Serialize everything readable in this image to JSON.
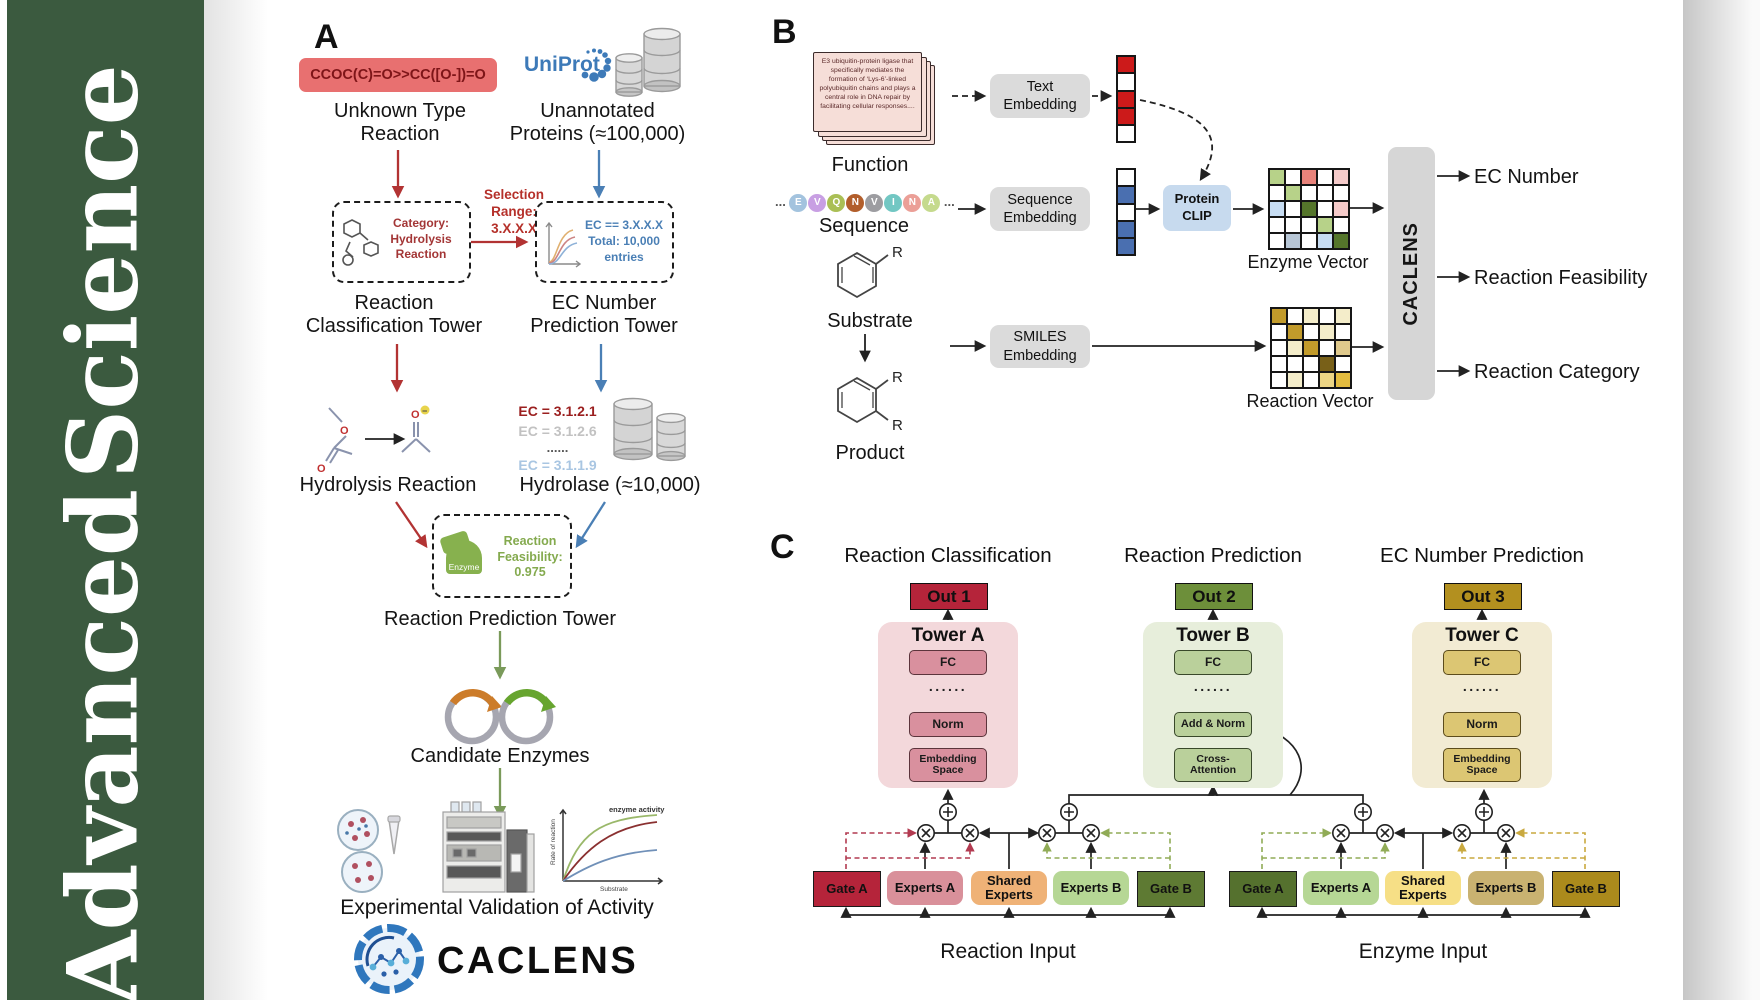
{
  "journal": {
    "line1": "Advanced",
    "line2": "Science"
  },
  "colors": {
    "sidebar_green": "#3b5a3f",
    "accent_red": "#b5243a",
    "accent_green": "#6d8f3a",
    "accent_gold": "#b3901f",
    "uniprot_blue": "#3d7ab8",
    "arrow_red": "#b23333",
    "arrow_blue": "#4a7fb5",
    "arrow_green": "#7a9a5a"
  },
  "panel_a": {
    "label": "A",
    "smiles": "CCOC(C)=O>>CC([O-])=O",
    "unknown": [
      "Unknown Type",
      "Reaction"
    ],
    "uniprot": "UniProt",
    "unannotated": [
      "Unannotated",
      "Proteins (≈100,000)"
    ],
    "rc_box_category": "Category: Hydrolysis Reaction",
    "selection": [
      "Selection",
      "Range:",
      "3.X.X.X"
    ],
    "ec_box": [
      "EC == 3.X.X.X",
      "Total: 10,000",
      "entries"
    ],
    "rc_tower": [
      "Reaction",
      "Classification Tower"
    ],
    "ec_tower": [
      "EC Number",
      "Prediction Tower"
    ],
    "hydrolysis": "Hydrolysis Reaction",
    "ec_list": [
      "EC = 3.1.2.1",
      "EC = 3.1.2.6",
      "......",
      "EC = 3.1.1.9"
    ],
    "hydrolase": "Hydrolase (≈10,000)",
    "enzyme_blob": "Enzyme",
    "feasibility": "Reaction Feasibility: 0.975",
    "rp_tower": "Reaction Prediction Tower",
    "candidate": "Candidate Enzymes",
    "validation": "Experimental Validation of Activity",
    "activity_plot": {
      "title": "enzyme activity",
      "ylabel": "Rate of reaction",
      "xlabel": "Substrate"
    },
    "logo_word": "CACLENS"
  },
  "panel_b": {
    "label": "B",
    "function_card": "E3 ubiquitin-protein ligase that specifically mediates the formation of ‘Lys-6’-linked polyubiquitin chains and plays a central role in DNA repair by facilitating cellular responses....",
    "function_label": "Function",
    "ellipsis": "...",
    "residues": [
      {
        "letter": "E",
        "color": "#a3c3de"
      },
      {
        "letter": "V",
        "color": "#c89fe3"
      },
      {
        "letter": "Q",
        "color": "#aabf55"
      },
      {
        "letter": "N",
        "color": "#b25e2b"
      },
      {
        "letter": "V",
        "color": "#9d9da1"
      },
      {
        "letter": "I",
        "color": "#72c7c3"
      },
      {
        "letter": "N",
        "color": "#eb9f97"
      },
      {
        "letter": "A",
        "color": "#c5da8d"
      }
    ],
    "sequence_label": "Sequence",
    "substrate_label": "Substrate",
    "product_label": "Product",
    "r_group": "R",
    "embeddings": {
      "text": "Text Embedding",
      "sequence": "Sequence Embedding",
      "smiles": "SMILES Embedding"
    },
    "protein_clip": "Protein CLIP",
    "enzyme_vector_label": "Enzyme Vector",
    "reaction_vector_label": "Reaction Vector",
    "caclens": "CACLENS",
    "outputs": [
      "EC Number",
      "Reaction Feasibility",
      "Reaction Category"
    ],
    "vector_colors": {
      "r": "#cc1a1a",
      "b": "#4a6fb0",
      "w": "#ffffff"
    },
    "text_vector": [
      "r",
      "w",
      "r",
      "r",
      "w"
    ],
    "seq_vector": [
      "w",
      "b",
      "w",
      "b",
      "b"
    ],
    "enzyme_grid": {
      "palette": {
        "g": "#b7d289",
        "G": "#55762b",
        "r": "#e8837b",
        "p": "#f5cbca",
        "b": "#c7ddf3",
        "s": "#b7c6d6",
        "w": "#ffffff"
      },
      "rows": [
        [
          "g",
          "w",
          "r",
          "w",
          "p"
        ],
        [
          "w",
          "g",
          "w",
          "w",
          "w"
        ],
        [
          "b",
          "w",
          "G",
          "w",
          "p"
        ],
        [
          "w",
          "w",
          "w",
          "g",
          "w"
        ],
        [
          "w",
          "s",
          "w",
          "b",
          "G"
        ]
      ]
    },
    "reaction_grid": {
      "palette": {
        "y": "#c29b2b",
        "l": "#f4edca",
        "t": "#dfc98c",
        "d": "#786018",
        "m": "#ecd584",
        "s": "#e3bc3f",
        "w": "#ffffff"
      },
      "rows": [
        [
          "y",
          "w",
          "l",
          "w",
          "l"
        ],
        [
          "w",
          "y",
          "w",
          "l",
          "w"
        ],
        [
          "w",
          "l",
          "y",
          "w",
          "t"
        ],
        [
          "w",
          "w",
          "w",
          "d",
          "w"
        ],
        [
          "w",
          "l",
          "w",
          "m",
          "s"
        ]
      ]
    }
  },
  "panel_c": {
    "label": "C",
    "headers": [
      "Reaction Classification",
      "Reaction Prediction",
      "EC Number Prediction"
    ],
    "outs": [
      "Out 1",
      "Out 2",
      "Out 3"
    ],
    "towers": [
      {
        "title": "Tower A",
        "layers": [
          "FC",
          "......",
          "Norm",
          "Embedding Space"
        ]
      },
      {
        "title": "Tower B",
        "layers": [
          "FC",
          "......",
          "Add & Norm",
          "Cross-Attention"
        ]
      },
      {
        "title": "Tower C",
        "layers": [
          "FC",
          "......",
          "Norm",
          "Embedding Space"
        ]
      }
    ],
    "moe_groups": [
      {
        "gate_a": "Gate A",
        "experts_a": "Experts A",
        "shared": "Shared Experts",
        "experts_b": "Experts B",
        "gate_b": "Gate B",
        "input_label": "Reaction Input"
      },
      {
        "gate_a": "Gate A",
        "experts_a": "Experts A",
        "shared": "Shared Experts",
        "experts_b": "Experts B",
        "gate_b": "Gate B",
        "input_label": "Enzyme Input"
      }
    ]
  }
}
